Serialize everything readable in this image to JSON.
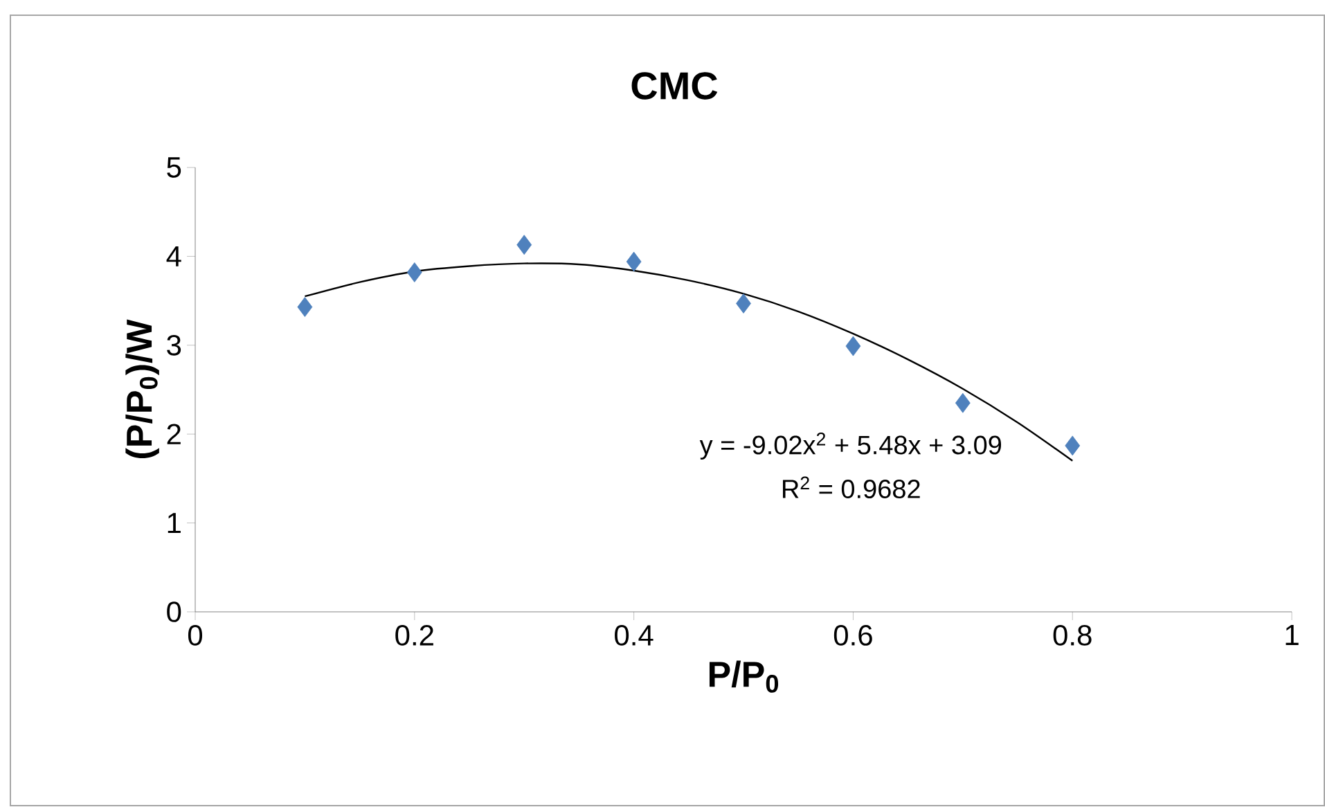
{
  "chart_data": {
    "type": "scatter",
    "title": "CMC",
    "xlabel": "P/P$_{0}$",
    "ylabel": "(P/P$_{0}$)/W",
    "x": [
      0.1,
      0.2,
      0.3,
      0.4,
      0.5,
      0.6,
      0.7,
      0.8
    ],
    "series": [
      {
        "color": "#4f81bd",
        "marker": "diamond",
        "values": [
          3.43,
          3.82,
          4.13,
          3.94,
          3.47,
          2.99,
          2.35,
          1.87
        ]
      },
      {
        "type": "line",
        "color": "#000000",
        "marker": "none",
        "line_style": "solid",
        "x": [
          0.1,
          0.15,
          0.2,
          0.25,
          0.3,
          0.35,
          0.4,
          0.45,
          0.5,
          0.55,
          0.6,
          0.65,
          0.7,
          0.75,
          0.8
        ],
        "values": [
          3.55,
          3.71,
          3.83,
          3.89,
          3.92,
          3.91,
          3.84,
          3.73,
          3.58,
          3.38,
          3.13,
          2.84,
          2.51,
          2.13,
          1.7
        ]
      }
    ],
    "annotations": [
      "y = -9.02x$^{2}$ + 5.48x + 3.09",
      "R$^{2}$ = 0.9682"
    ],
    "xlim": [
      0,
      1
    ],
    "ylim": [
      0,
      5
    ],
    "xticks": [
      0,
      0.2,
      0.4,
      0.6,
      0.8,
      1
    ],
    "yticks": [
      0,
      1,
      2,
      3,
      4,
      5
    ]
  }
}
